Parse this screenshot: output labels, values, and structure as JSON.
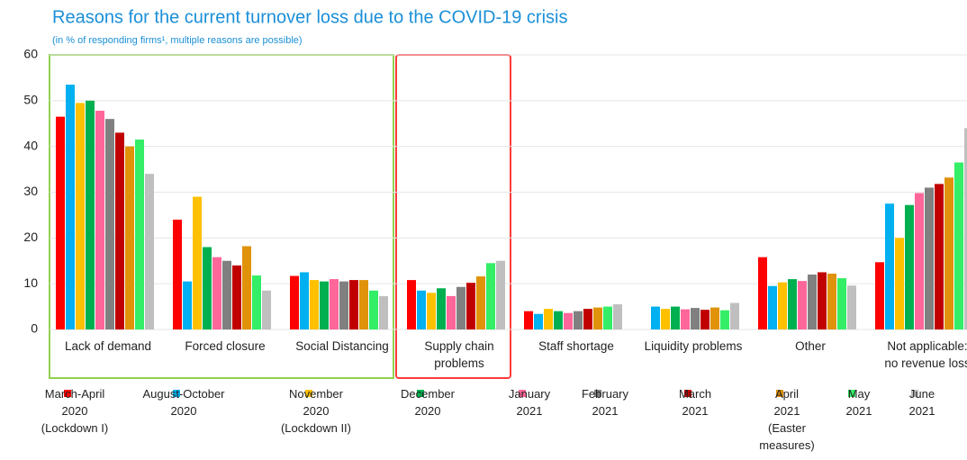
{
  "chart_data": {
    "type": "bar",
    "title": "Reasons for the current turnover loss due to the COVID-19 crisis",
    "subtitle": "(in % of responding firms¹, multiple reasons are possible)",
    "categories": [
      "Lack of demand",
      "Forced closure",
      "Social Distancing",
      "Supply chain\nproblems",
      "Staff shortage",
      "Liquidity problems",
      "Other",
      "Not applicable:\nno revenue loss"
    ],
    "ylim": [
      0,
      60
    ],
    "yticks": [
      0,
      10,
      20,
      30,
      40,
      50,
      60
    ],
    "grid": true,
    "series": [
      {
        "name": "March-April\n2020\n(Lockdown I)",
        "color": "#ff0000",
        "values": [
          46.5,
          24,
          11.7,
          10.8,
          4,
          null,
          15.8,
          14.7
        ]
      },
      {
        "name": "August-October\n2020",
        "color": "#00b0f0",
        "values": [
          53.5,
          10.5,
          12.5,
          8.5,
          3.4,
          5,
          9.5,
          27.5
        ]
      },
      {
        "name": "November\n2020\n(Lockdown II)",
        "color": "#ffc000",
        "values": [
          49.5,
          29,
          10.8,
          8,
          4.5,
          4.5,
          10.3,
          20
        ]
      },
      {
        "name": "December\n2020",
        "color": "#00b050",
        "values": [
          50,
          18,
          10.5,
          9,
          4,
          5,
          11,
          27.2
        ]
      },
      {
        "name": "January\n2021",
        "color": "#ff6699",
        "values": [
          47.8,
          15.8,
          11,
          7.3,
          3.6,
          4.4,
          10.6,
          29.8
        ]
      },
      {
        "name": "February\n2021",
        "color": "#808080",
        "values": [
          46,
          15,
          10.5,
          9.3,
          4,
          4.7,
          12,
          31
        ]
      },
      {
        "name": "March\n2021",
        "color": "#c00000",
        "values": [
          43,
          14,
          10.8,
          10.2,
          4.5,
          4.3,
          12.5,
          31.8
        ]
      },
      {
        "name": "April\n2021\n(Easter\nmeasures)",
        "color": "#e0920a",
        "values": [
          40,
          18.2,
          10.8,
          11.6,
          4.8,
          4.8,
          12.2,
          33.2
        ]
      },
      {
        "name": "May\n2021",
        "color": "#33ee66",
        "values": [
          41.5,
          11.8,
          8.5,
          14.5,
          5,
          4.2,
          11.2,
          36.5
        ]
      },
      {
        "name": "June\n2021",
        "color": "#bfbfbf",
        "values": [
          34,
          8.5,
          7.3,
          15,
          5.5,
          5.8,
          9.6,
          44
        ]
      }
    ]
  }
}
